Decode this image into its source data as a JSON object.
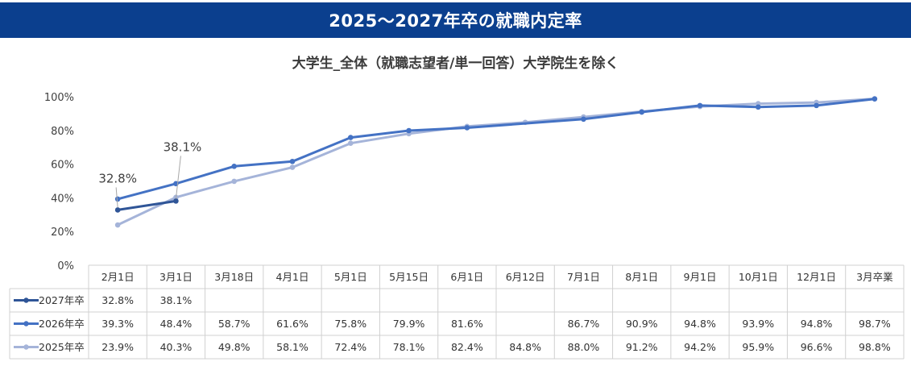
{
  "banner_title": "2025～2027年卒の就職内定率",
  "chart_data": {
    "type": "line",
    "title": "大学生_全体（就職志望者/単一回答）大学院生を除く",
    "categories": [
      "2月1日",
      "3月1日",
      "3月18日",
      "4月1日",
      "5月1日",
      "5月15日",
      "6月1日",
      "6月12日",
      "7月1日",
      "8月1日",
      "9月1日",
      "10月1日",
      "12月1日",
      "3月卒業"
    ],
    "y_ticks": [
      "0%",
      "20%",
      "40%",
      "60%",
      "80%",
      "100%"
    ],
    "ylim": [
      0,
      100
    ],
    "series": [
      {
        "name": "2027年卒",
        "color": "#2f5597",
        "values": [
          32.8,
          38.1,
          null,
          null,
          null,
          null,
          null,
          null,
          null,
          null,
          null,
          null,
          null,
          null
        ],
        "labels": [
          "32.8%",
          "38.1%",
          "",
          "",
          "",
          "",
          "",
          "",
          "",
          "",
          "",
          "",
          "",
          ""
        ]
      },
      {
        "name": "2026年卒",
        "color": "#4472c4",
        "values": [
          39.3,
          48.4,
          58.7,
          61.6,
          75.8,
          79.9,
          81.6,
          null,
          86.7,
          90.9,
          94.8,
          93.9,
          94.8,
          98.7
        ],
        "labels": [
          "39.3%",
          "48.4%",
          "58.7%",
          "61.6%",
          "75.8%",
          "79.9%",
          "81.6%",
          "",
          "86.7%",
          "90.9%",
          "94.8%",
          "93.9%",
          "94.8%",
          "98.7%"
        ]
      },
      {
        "name": "2025年卒",
        "color": "#a5b4d9",
        "values": [
          23.9,
          40.3,
          49.8,
          58.1,
          72.4,
          78.1,
          82.4,
          84.8,
          88.0,
          91.2,
          94.2,
          95.9,
          96.6,
          98.8
        ],
        "labels": [
          "23.9%",
          "40.3%",
          "49.8%",
          "58.1%",
          "72.4%",
          "78.1%",
          "82.4%",
          "84.8%",
          "88.0%",
          "91.2%",
          "94.2%",
          "95.9%",
          "96.6%",
          "98.8%"
        ]
      }
    ],
    "annotations": [
      "32.8%",
      "38.1%"
    ],
    "grid": false,
    "legend": "data-table"
  }
}
